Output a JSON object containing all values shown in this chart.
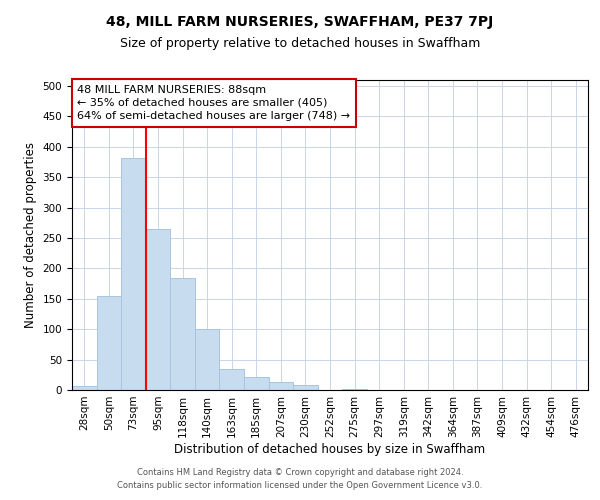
{
  "title": "48, MILL FARM NURSERIES, SWAFFHAM, PE37 7PJ",
  "subtitle": "Size of property relative to detached houses in Swaffham",
  "xlabel": "Distribution of detached houses by size in Swaffham",
  "ylabel": "Number of detached properties",
  "bar_labels": [
    "28sqm",
    "50sqm",
    "73sqm",
    "95sqm",
    "118sqm",
    "140sqm",
    "163sqm",
    "185sqm",
    "207sqm",
    "230sqm",
    "252sqm",
    "275sqm",
    "297sqm",
    "319sqm",
    "342sqm",
    "364sqm",
    "387sqm",
    "409sqm",
    "432sqm",
    "454sqm",
    "476sqm"
  ],
  "bar_heights": [
    6,
    155,
    382,
    265,
    185,
    100,
    35,
    22,
    13,
    8,
    0,
    2,
    0,
    0,
    0,
    0,
    0,
    0,
    0,
    0,
    0
  ],
  "bar_color": "#c8dcf0",
  "bar_edge_color": "#a8c4e0",
  "vline_x": 3,
  "vline_color": "red",
  "annotation_text": "48 MILL FARM NURSERIES: 88sqm\n← 35% of detached houses are smaller (405)\n64% of semi-detached houses are larger (748) →",
  "ylim": [
    0,
    510
  ],
  "yticks": [
    0,
    50,
    100,
    150,
    200,
    250,
    300,
    350,
    400,
    450,
    500
  ],
  "footer_line1": "Contains HM Land Registry data © Crown copyright and database right 2024.",
  "footer_line2": "Contains public sector information licensed under the Open Government Licence v3.0.",
  "title_fontsize": 10,
  "subtitle_fontsize": 9,
  "axis_label_fontsize": 8.5,
  "tick_fontsize": 7.5,
  "annotation_fontsize": 8
}
